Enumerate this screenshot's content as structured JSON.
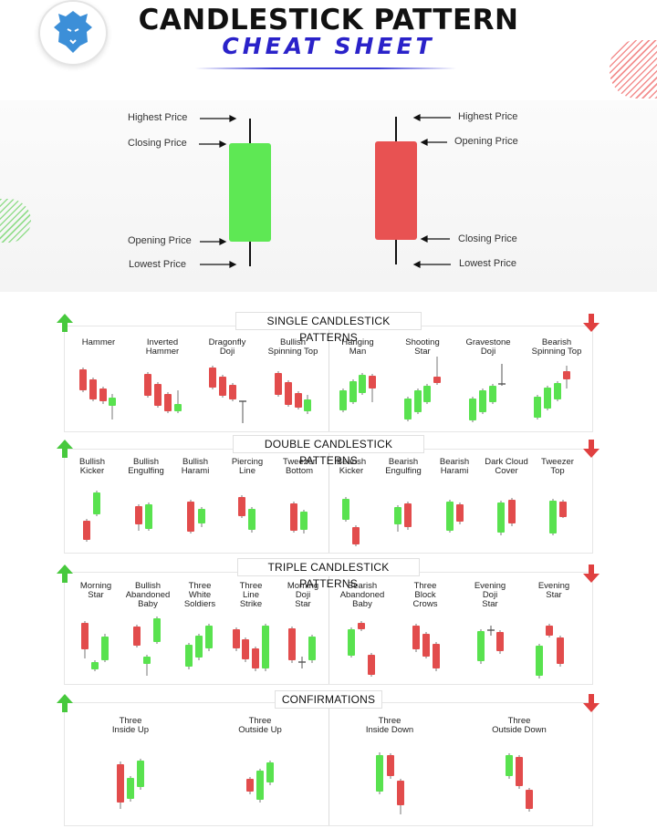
{
  "header": {
    "title_line1": "CANDLESTICK PATTERN",
    "title_line2": "CHEAT SHEET",
    "logo_icon": "lion-head-icon"
  },
  "anatomy": {
    "bullish": {
      "highest": "Highest Price",
      "closing": "Closing Price",
      "opening": "Opening Price",
      "lowest": "Lowest Price",
      "color": "#5ee854"
    },
    "bearish": {
      "highest": "Highest Price",
      "opening": "Opening Price",
      "closing": "Closing Price",
      "lowest": "Lowest Price",
      "color": "#e85252"
    }
  },
  "colors": {
    "green": "#59e24f",
    "red": "#e24c4c",
    "panel_border": "#e6e6e6"
  },
  "sections": [
    {
      "title": "SINGLE CANDLESTICK PATTERNS",
      "bullish_names": [
        "Hammer",
        "Inverted\nHammer",
        "Dragonfly\nDoji",
        "Bullish\nSpinning Top"
      ],
      "bearish_names": [
        "Hanging\nMan",
        "Shooting\nStar",
        "Gravestone\nDoji",
        "Bearish\nSpinning Top"
      ]
    },
    {
      "title": "DOUBLE CANDLESTICK PATTERNS",
      "bullish_names": [
        "Bullish\nKicker",
        "Bullish\nEngulfing",
        "Bullish\nHarami",
        "Piercing\nLine",
        "Tweezer\nBottom"
      ],
      "bearish_names": [
        "Bearish\nKicker",
        "Bearish\nEngulfing",
        "Bearish\nHarami",
        "Dark Cloud\nCover",
        "Tweezer\nTop"
      ]
    },
    {
      "title": "TRIPLE CANDLESTICK PATTERNS",
      "bullish_names": [
        "Morning\nStar",
        "Bullish\nAbandoned\nBaby",
        "Three\nWhite\nSoldiers",
        "Three\nLine\nStrike",
        "Morning\nDoji\nStar"
      ],
      "bearish_names": [
        "Bearish\nAbandoned\nBaby",
        "Three\nBlock\nCrows",
        "Evening\nDoji\nStar",
        "Evening\nStar"
      ]
    },
    {
      "title": "CONFIRMATIONS",
      "bullish_names": [
        "Three\nInside Up",
        "Three\nOutside Up"
      ],
      "bearish_names": [
        "Three\nInside Down",
        "Three\nOutside Down"
      ]
    }
  ]
}
